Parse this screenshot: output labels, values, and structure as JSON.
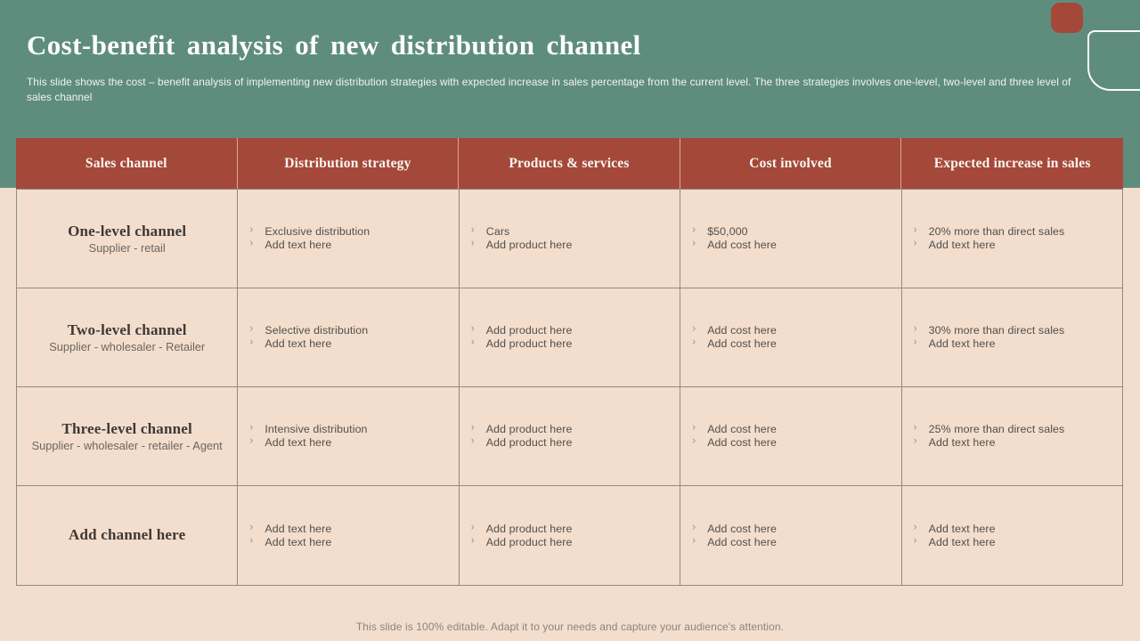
{
  "slide": {
    "title": "Cost-benefit analysis of new distribution channel",
    "subtitle": "This slide shows the cost – benefit analysis of implementing new distribution strategies with expected increase in sales percentage from the current level.  The three strategies involves one-level, two-level and three level of sales channel",
    "footer": "This slide is 100% editable. Adapt it to your needs and capture your audience's attention."
  },
  "colors": {
    "green_background": "#5F8D7D",
    "red_accent": "#A4483A",
    "peach_background": "#F3DDCD",
    "grid_border": "#8C8C86",
    "body_text": "#51504B"
  },
  "table": {
    "bullet_char": "›",
    "headers": [
      "Sales channel",
      "Distribution strategy",
      "Products & services",
      "Cost involved",
      "Expected increase in sales"
    ],
    "rows": [
      {
        "channel": "One-level channel",
        "channel_sub": "Supplier - retail",
        "distribution": [
          "Exclusive distribution",
          "Add text here"
        ],
        "products": [
          "Cars",
          "Add product here"
        ],
        "cost": [
          "$50,000",
          "Add cost here"
        ],
        "increase": [
          "20% more than direct sales",
          "Add text here"
        ]
      },
      {
        "channel": "Two-level channel",
        "channel_sub": "Supplier  - wholesaler - Retailer",
        "distribution": [
          "Selective distribution",
          "Add text here"
        ],
        "products": [
          "Add product here",
          "Add product here"
        ],
        "cost": [
          "Add cost here",
          "Add cost here"
        ],
        "increase": [
          "30% more than direct sales",
          "Add text here"
        ]
      },
      {
        "channel": "Three-level channel",
        "channel_sub": "Supplier -  wholesaler  - retailer - Agent",
        "distribution": [
          "Intensive distribution",
          "Add text here"
        ],
        "products": [
          "Add product here",
          "Add product here"
        ],
        "cost": [
          "Add cost here",
          "Add cost here"
        ],
        "increase": [
          "25% more than direct sales",
          "Add text here"
        ]
      },
      {
        "channel": "Add channel here",
        "channel_sub": "",
        "distribution": [
          "Add text here",
          "Add text here"
        ],
        "products": [
          "Add product here",
          "Add product here"
        ],
        "cost": [
          "Add cost here",
          "Add cost here"
        ],
        "increase": [
          "Add text here",
          "Add text here"
        ]
      }
    ]
  }
}
